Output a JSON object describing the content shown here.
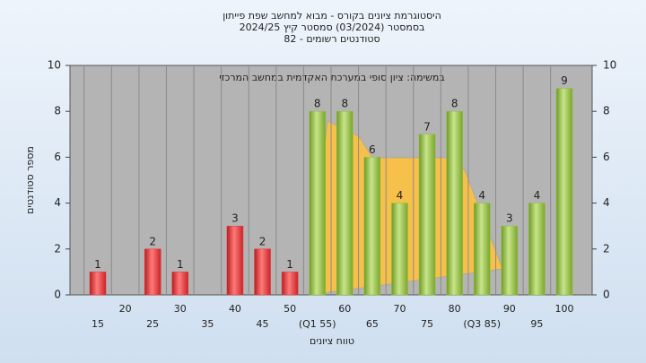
{
  "chart_data": {
    "type": "bar",
    "title": "היסטוגרמת ציונים בקורס - מבוא למחשב שפת פייתון",
    "subtitle": "בסמסטר (03/2024) סמסטר קיץ 2024/25",
    "subtitle2": "סטודנטים רשומים - 82",
    "annotation": "במשימה: ציון סופי במערכת האקדמית במחשב המרכזי",
    "xlabel": "טווח ציונים",
    "ylabel": "מספר סטודנטים",
    "categories": [
      "15",
      "20",
      "25",
      "30",
      "35",
      "40",
      "45",
      "50",
      "(Q1 55)",
      "60",
      "65",
      "70",
      "75",
      "80",
      "(Q3 85)",
      "90",
      "95",
      "100"
    ],
    "values": [
      1,
      0,
      2,
      1,
      0,
      3,
      2,
      1,
      8,
      8,
      6,
      4,
      7,
      8,
      4,
      3,
      4,
      9
    ],
    "colors": [
      "#e8363a",
      "#e8363a",
      "#e8363a",
      "#e8363a",
      "#e8363a",
      "#e8363a",
      "#e8363a",
      "#e8363a",
      "#8fbf3a",
      "#8fbf3a",
      "#8fbf3a",
      "#8fbf3a",
      "#8fbf3a",
      "#8fbf3a",
      "#8fbf3a",
      "#8fbf3a",
      "#8fbf3a",
      "#8fbf3a"
    ],
    "ylim": [
      0,
      10
    ],
    "yticks": [
      0,
      2,
      4,
      6,
      8,
      10
    ],
    "y2lim": [
      0,
      10
    ],
    "y2ticks": [
      0,
      2,
      4,
      6,
      8,
      10
    ],
    "grid": true
  }
}
